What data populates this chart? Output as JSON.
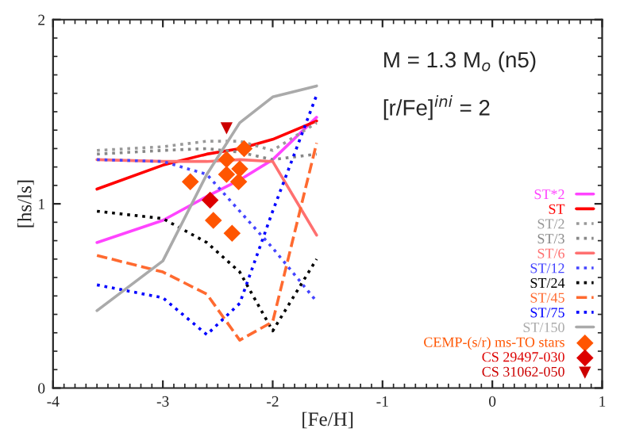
{
  "chart_data": {
    "type": "line",
    "xlabel": "[Fe/H]",
    "ylabel": "[hs/ls]",
    "annotations": [
      "M = 1.3 M$_{o}$ (n5)",
      "[r/Fe]$^{ini}$ = 2"
    ],
    "xlim": [
      -4,
      1
    ],
    "ylim": [
      0,
      2
    ],
    "xticks": [
      -4,
      -3,
      -2,
      -1,
      0,
      1
    ],
    "yticks": [
      0,
      1,
      2
    ],
    "grid": false,
    "legend": "bottom right",
    "series": [
      {
        "name": "ST*2",
        "color": "#ff44ff",
        "line_style": "solid",
        "x": [
          -3.6,
          -3.0,
          -2.6,
          -2.3,
          -2.0,
          -1.6
        ],
        "values": [
          0.79,
          0.91,
          1.04,
          1.13,
          1.24,
          1.47
        ]
      },
      {
        "name": "ST",
        "color": "#ff0000",
        "line_style": "solid",
        "x": [
          -3.6,
          -3.0,
          -2.6,
          -2.3,
          -2.0,
          -1.6
        ],
        "values": [
          1.08,
          1.21,
          1.27,
          1.3,
          1.35,
          1.45
        ]
      },
      {
        "name": "ST/2",
        "color": "#999999",
        "line_style": "dotted",
        "x": [
          -3.6,
          -3.0,
          -2.6,
          -2.3,
          -2.0,
          -1.6
        ],
        "values": [
          1.29,
          1.31,
          1.34,
          1.34,
          1.29,
          1.44
        ]
      },
      {
        "name": "ST/3",
        "color": "#888888",
        "line_style": "dotted",
        "x": [
          -3.6,
          -3.0,
          -2.6,
          -2.3,
          -2.0,
          -1.6
        ],
        "values": [
          1.27,
          1.29,
          1.3,
          1.28,
          1.24,
          1.27
        ]
      },
      {
        "name": "ST/6",
        "color": "#ff7070",
        "line_style": "solid",
        "x": [
          -3.6,
          -3.0,
          -2.6,
          -2.3,
          -2.0,
          -1.6
        ],
        "values": [
          1.24,
          1.23,
          1.23,
          1.24,
          1.23,
          0.83
        ]
      },
      {
        "name": "ST/12",
        "color": "#4444ff",
        "line_style": "dotted",
        "x": [
          -3.6,
          -3.0,
          -2.6,
          -2.3,
          -2.0,
          -1.6
        ],
        "values": [
          1.24,
          1.23,
          1.16,
          0.96,
          0.76,
          0.47
        ]
      },
      {
        "name": "ST/24",
        "color": "#000000",
        "line_style": "dotted",
        "x": [
          -3.6,
          -3.0,
          -2.6,
          -2.3,
          -2.0,
          -1.6
        ],
        "values": [
          0.96,
          0.92,
          0.79,
          0.63,
          0.31,
          0.7
        ]
      },
      {
        "name": "ST/45",
        "color": "#ff6a30",
        "line_style": "dashed",
        "x": [
          -3.6,
          -3.0,
          -2.6,
          -2.3,
          -2.0,
          -1.6
        ],
        "values": [
          0.72,
          0.63,
          0.51,
          0.26,
          0.36,
          1.33
        ]
      },
      {
        "name": "ST/75",
        "color": "#0000ff",
        "line_style": "dotted",
        "x": [
          -3.6,
          -3.0,
          -2.6,
          -2.3,
          -2.0,
          -1.6
        ],
        "values": [
          0.56,
          0.49,
          0.29,
          0.46,
          0.96,
          1.59
        ]
      },
      {
        "name": "ST/150",
        "color": "#aaaaaa",
        "line_style": "solid",
        "x": [
          -3.6,
          -3.0,
          -2.6,
          -2.3,
          -2.0,
          -1.6
        ],
        "values": [
          0.42,
          0.69,
          1.16,
          1.44,
          1.58,
          1.64
        ]
      },
      {
        "name": "CEMP-(s/r) ms-TO stars",
        "type": "scatter",
        "marker": "diamond",
        "color": "#ff5500",
        "x": [
          -2.75,
          -2.42,
          -2.26,
          -2.42,
          -2.3,
          -2.31,
          -2.54,
          -2.37
        ],
        "values": [
          1.12,
          1.24,
          1.3,
          1.16,
          1.19,
          1.12,
          0.91,
          0.84
        ]
      },
      {
        "name": "CS 29497-030",
        "type": "scatter",
        "marker": "diamond",
        "color": "#dd0000",
        "x": [
          -2.57
        ],
        "values": [
          1.02
        ]
      },
      {
        "name": "CS 31062-050",
        "type": "scatter",
        "marker": "triangle",
        "color": "#cc0000",
        "x": [
          -2.42
        ],
        "values": [
          1.41
        ]
      }
    ]
  }
}
